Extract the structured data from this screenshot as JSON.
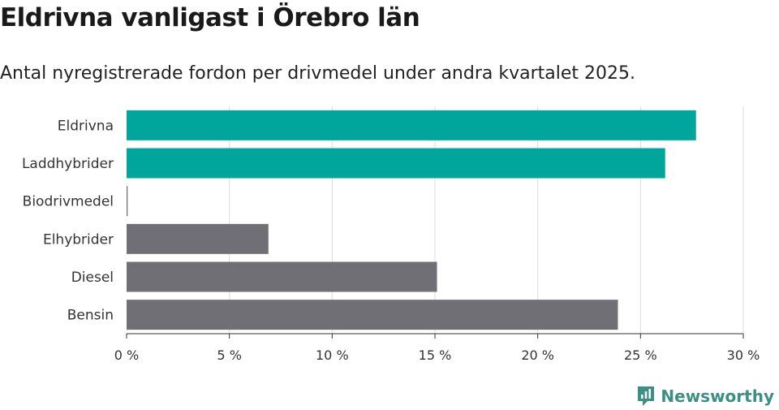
{
  "header": {
    "title": "Eldrivna vanligast i Örebro län",
    "subtitle": "Antal nyregistrerade fordon per drivmedel under andra kvartalet 2025."
  },
  "brand": {
    "name": "Newsworthy",
    "icon": "newsworthy-logo-icon"
  },
  "colors": {
    "highlight": "#00a59b",
    "default": "#706f75",
    "grid": "#dcdcdc",
    "axis": "#333333"
  },
  "chart_data": {
    "type": "bar",
    "orientation": "horizontal",
    "title": "",
    "xlabel": "",
    "ylabel": "",
    "xlim": [
      0,
      30
    ],
    "x_ticks": [
      "0 %",
      "5 %",
      "10 %",
      "15 %",
      "20 %",
      "25 %",
      "30 %"
    ],
    "categories": [
      "Eldrivna",
      "Laddhybrider",
      "Biodrivmedel",
      "Elhybrider",
      "Diesel",
      "Bensin"
    ],
    "values": [
      27.7,
      26.2,
      0.05,
      6.9,
      15.1,
      23.9
    ],
    "bar_colors": [
      "#00a59b",
      "#00a59b",
      "#706f75",
      "#706f75",
      "#706f75",
      "#706f75"
    ],
    "grid": true,
    "legend": "none"
  }
}
